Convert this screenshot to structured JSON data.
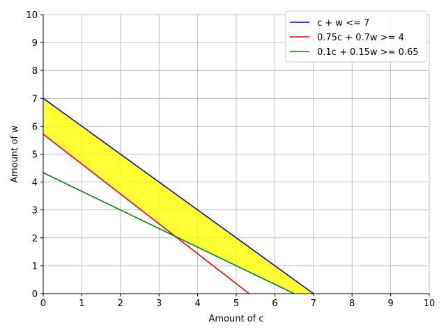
{
  "chart_data": {
    "type": "line",
    "xlabel": "Amount of c",
    "ylabel": "Amount of w",
    "xlim": [
      0,
      10
    ],
    "ylim": [
      0,
      10
    ],
    "xticks": [
      "0",
      "1",
      "2",
      "3",
      "4",
      "5",
      "6",
      "7",
      "8",
      "9",
      "10"
    ],
    "yticks": [
      "0",
      "1",
      "2",
      "3",
      "4",
      "5",
      "6",
      "7",
      "8",
      "9",
      "10"
    ],
    "grid": true,
    "legend_position": "top-right",
    "series": [
      {
        "name": "c + w <= 7",
        "color": "#0000ff",
        "x": [
          0,
          7
        ],
        "y": [
          7,
          0
        ]
      },
      {
        "name": "0.75c + 0.7w >= 4",
        "color": "#ff0000",
        "x": [
          0,
          5.333
        ],
        "y": [
          5.714,
          0
        ]
      },
      {
        "name": "0.1c + 0.15w >= 0.65",
        "color": "#008000",
        "x": [
          0,
          6.5
        ],
        "y": [
          4.333,
          0
        ]
      }
    ],
    "feasible_region": {
      "color": "#ffff00",
      "vertices": [
        [
          0,
          7
        ],
        [
          7,
          0
        ],
        [
          6.5,
          0
        ],
        [
          3.444,
          2.0
        ],
        [
          0,
          5.714
        ]
      ]
    }
  }
}
